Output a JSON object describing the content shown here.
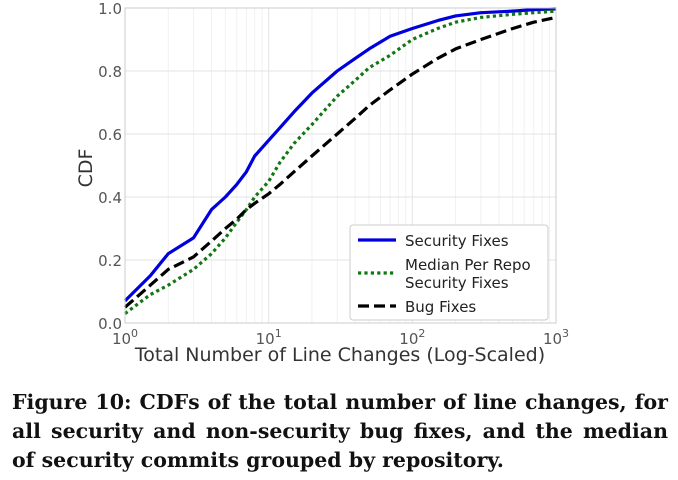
{
  "chart_data": {
    "type": "line",
    "xscale": "log",
    "xlim": [
      1,
      1000
    ],
    "ylim": [
      0,
      1
    ],
    "xlabel": "Total Number of Line Changes (Log-Scaled)",
    "ylabel": "CDF",
    "grid": true,
    "legend_position": "bottom-right",
    "x_ticks": [
      {
        "value": 1,
        "base": "10",
        "exp": "0"
      },
      {
        "value": 10,
        "base": "10",
        "exp": "1"
      },
      {
        "value": 100,
        "base": "10",
        "exp": "2"
      },
      {
        "value": 1000,
        "base": "10",
        "exp": "3"
      }
    ],
    "y_ticks": [
      {
        "value": 0,
        "label": "0.0"
      },
      {
        "value": 0.2,
        "label": "0.2"
      },
      {
        "value": 0.4,
        "label": "0.4"
      },
      {
        "value": 0.6,
        "label": "0.6"
      },
      {
        "value": 0.8,
        "label": "0.8"
      },
      {
        "value": 1.0,
        "label": "1.0"
      }
    ],
    "series": [
      {
        "name": "Security Fixes",
        "color": "#0000dd",
        "style": "solid",
        "x": [
          1,
          1.5,
          2,
          3,
          4,
          5,
          6,
          7,
          8,
          10,
          12,
          15,
          20,
          30,
          40,
          50,
          70,
          100,
          150,
          200,
          300,
          500,
          700,
          1000
        ],
        "y": [
          0.07,
          0.15,
          0.22,
          0.27,
          0.36,
          0.4,
          0.44,
          0.48,
          0.53,
          0.58,
          0.62,
          0.67,
          0.73,
          0.8,
          0.84,
          0.87,
          0.91,
          0.935,
          0.96,
          0.975,
          0.985,
          0.99,
          0.995,
          0.997
        ]
      },
      {
        "name": "Median Per Repo\nSecurity Fixes",
        "color": "#117711",
        "style": "dotted",
        "x": [
          1,
          1.5,
          2,
          3,
          4,
          5,
          6,
          7,
          8,
          10,
          12,
          15,
          20,
          30,
          40,
          50,
          70,
          100,
          150,
          200,
          300,
          500,
          700,
          1000
        ],
        "y": [
          0.03,
          0.09,
          0.12,
          0.17,
          0.22,
          0.27,
          0.32,
          0.36,
          0.4,
          0.45,
          0.51,
          0.57,
          0.63,
          0.72,
          0.77,
          0.81,
          0.85,
          0.9,
          0.935,
          0.955,
          0.97,
          0.98,
          0.985,
          0.99
        ]
      },
      {
        "name": "Bug Fixes",
        "color": "#000000",
        "style": "dashed",
        "x": [
          1,
          1.5,
          2,
          3,
          4,
          5,
          6,
          7,
          8,
          10,
          12,
          15,
          20,
          30,
          40,
          50,
          70,
          100,
          150,
          200,
          300,
          500,
          700,
          1000
        ],
        "y": [
          0.05,
          0.12,
          0.17,
          0.21,
          0.26,
          0.3,
          0.33,
          0.36,
          0.38,
          0.41,
          0.44,
          0.48,
          0.53,
          0.6,
          0.65,
          0.69,
          0.74,
          0.79,
          0.84,
          0.87,
          0.9,
          0.935,
          0.955,
          0.97
        ]
      }
    ]
  },
  "caption": "Figure 10: CDFs of the total number of line changes, for all security and non-security bug fixes, and the median of security commits grouped by repository."
}
